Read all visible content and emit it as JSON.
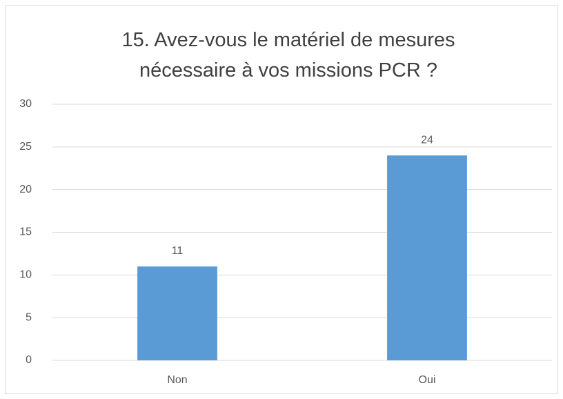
{
  "chart_data": {
    "type": "bar",
    "title": "15. Avez-vous le matériel de mesures nécessaire à vos missions PCR ?",
    "categories": [
      "Non",
      "Oui"
    ],
    "values": [
      11,
      24
    ],
    "color": "#5b9bd5",
    "ylim": [
      0,
      30
    ],
    "yticks": [
      0,
      5,
      10,
      15,
      20,
      25,
      30
    ],
    "grid": true
  }
}
